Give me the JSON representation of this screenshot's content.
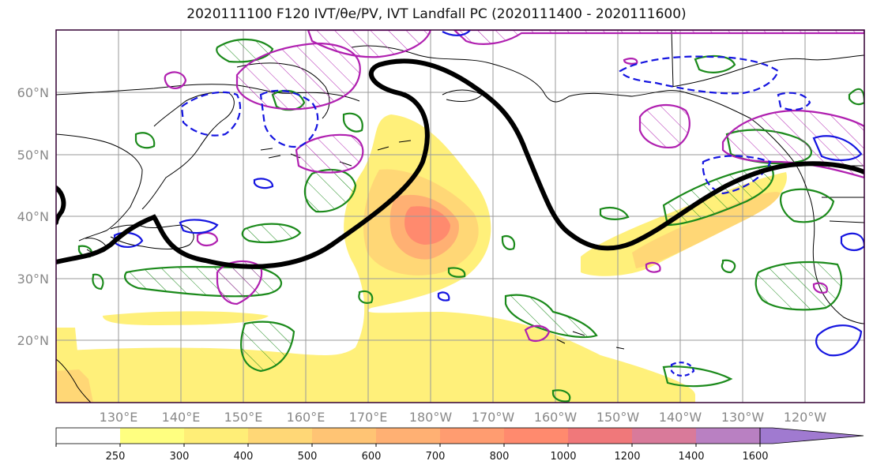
{
  "title": "2020111100 F120 IVT/θe/PV, IVT Landfall PC (2020111400 - 2020111600)",
  "lat_labels": [
    "60°N",
    "50°N",
    "40°N",
    "30°N",
    "20°N"
  ],
  "lon_labels": [
    "130°E",
    "140°E",
    "150°E",
    "160°E",
    "170°E",
    "180°W",
    "170°W",
    "160°W",
    "150°W",
    "140°W",
    "130°W",
    "120°W"
  ],
  "colorbar": {
    "ticks": [
      "250",
      "300",
      "400",
      "500",
      "600",
      "700",
      "800",
      "1000",
      "1200",
      "1400",
      "1600"
    ],
    "colors": [
      "#ffffff",
      "#ffff80",
      "#ffee77",
      "#ffd776",
      "#ffc474",
      "#ffb073",
      "#ff9c70",
      "#ff8a6e",
      "#f0787a",
      "#d97a9a",
      "#b980c2",
      "#a07ad0"
    ]
  }
}
